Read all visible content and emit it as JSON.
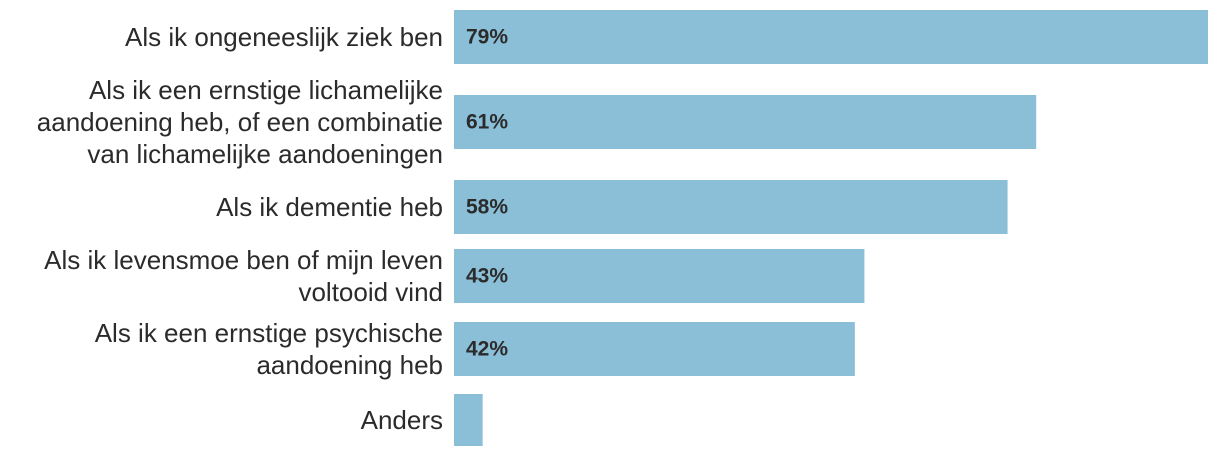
{
  "chart_data": {
    "type": "bar",
    "orientation": "horizontal",
    "categories": [
      "Als ik ongeneeslijk ziek ben",
      "Als ik een ernstige lichamelijke aandoening heb, of een combinatie van lichamelijke aandoeningen",
      "Als ik dementie heb",
      "Als ik levensmoe ben of mijn leven voltooid vind",
      "Als ik een ernstige psychische aandoening heb",
      "Anders"
    ],
    "category_lines": [
      [
        "Als ik ongeneeslijk ziek ben"
      ],
      [
        "Als ik een ernstige lichamelijke",
        "aandoening heb, of een combinatie",
        "van lichamelijke aandoeningen"
      ],
      [
        "Als ik dementie heb"
      ],
      [
        "Als ik levensmoe ben of mijn leven",
        "voltooid vind"
      ],
      [
        "Als ik een ernstige psychische",
        "aandoening heb"
      ],
      [
        "Anders"
      ]
    ],
    "values": [
      79,
      61,
      58,
      43,
      42,
      3
    ],
    "value_labels": [
      "79%",
      "61%",
      "58%",
      "43%",
      "42%",
      ""
    ],
    "unit": "%",
    "xlim": [
      0,
      79
    ],
    "bar_color": "#8abfd7",
    "text_color": "#2b2b2b",
    "grid": false,
    "legend": "none"
  }
}
